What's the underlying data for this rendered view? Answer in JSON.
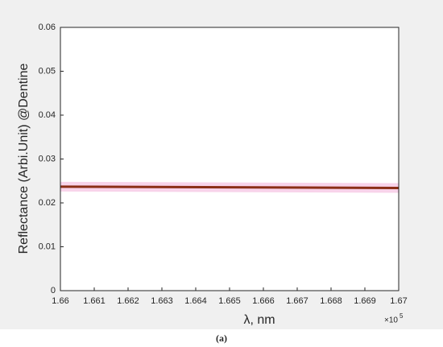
{
  "chart_data": {
    "type": "line",
    "x_label": "λ, nm",
    "y_label": "Reflectance (Arbi.Unit) @Dentine",
    "x_scale_label": {
      "base": "×10",
      "exponent": "5"
    },
    "caption": "(a)",
    "x": [
      1.66,
      1.67
    ],
    "series": [
      {
        "color": "#8b2e16",
        "values": [
          0.0237,
          0.0234
        ]
      }
    ],
    "band": {
      "color": "#f8d3ea",
      "lower": [
        0.0226,
        0.0223
      ],
      "upper": [
        0.0248,
        0.0245
      ]
    },
    "xlim": [
      1.66,
      1.67
    ],
    "xticks": [
      1.66,
      1.661,
      1.662,
      1.663,
      1.664,
      1.665,
      1.666,
      1.667,
      1.668,
      1.669,
      1.67
    ],
    "ylim": [
      0,
      0.06
    ],
    "yticks": [
      0,
      0.01,
      0.02,
      0.03,
      0.04,
      0.05,
      0.06
    ],
    "grid": false
  }
}
